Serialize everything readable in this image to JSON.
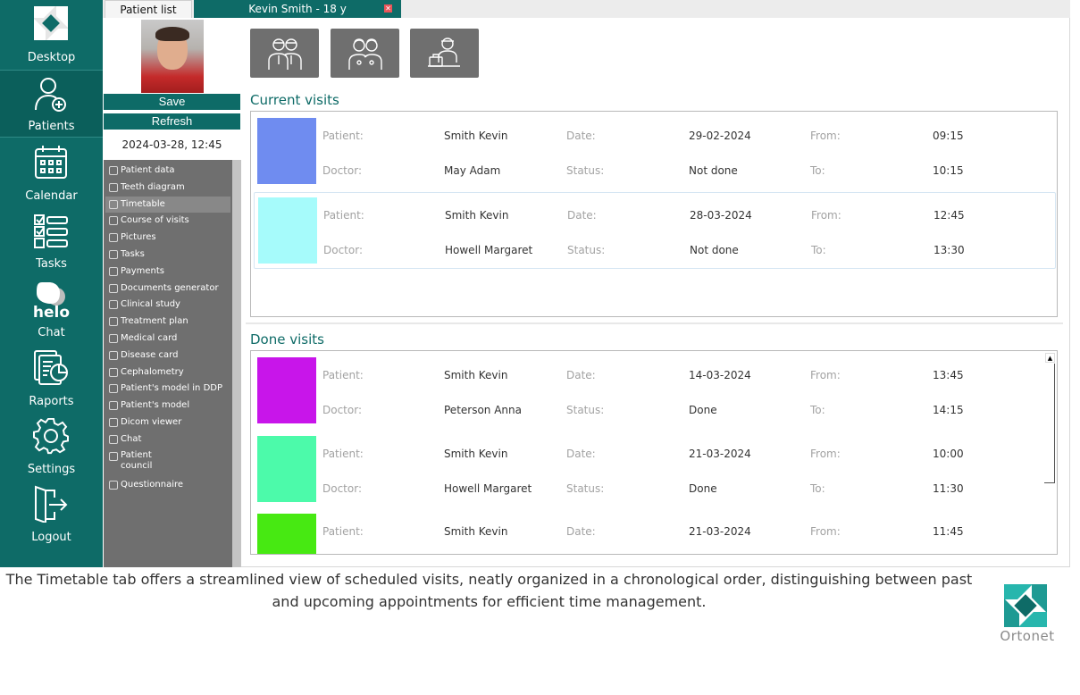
{
  "nav": {
    "items": [
      {
        "label": "Desktop",
        "icon": "desktop-logo-icon"
      },
      {
        "label": "Patients",
        "icon": "patient-add-icon"
      },
      {
        "label": "Calendar",
        "icon": "calendar-icon"
      },
      {
        "label": "Tasks",
        "icon": "checklist-icon"
      },
      {
        "label": "Chat",
        "icon": "chat-bubble-icon"
      },
      {
        "label": "Raports",
        "icon": "report-chart-icon"
      },
      {
        "label": "Settings",
        "icon": "gear-icon"
      },
      {
        "label": "Logout",
        "icon": "logout-door-icon"
      }
    ],
    "chat_brand": "helo"
  },
  "tabs": {
    "patient_list": "Patient list",
    "patient_tab": "Kevin Smith   - 18 y"
  },
  "actions": {
    "save": "Save",
    "refresh": "Refresh",
    "datetime": "2024-03-28, 12:45"
  },
  "menu": [
    {
      "label": "Patient data"
    },
    {
      "label": "Teeth diagram"
    },
    {
      "label": "Timetable",
      "active": true
    },
    {
      "label": "Course of visits"
    },
    {
      "label": "Pictures"
    },
    {
      "label": "Tasks"
    },
    {
      "label": "Payments"
    },
    {
      "label": "Documents generator"
    },
    {
      "label": "Clinical study"
    },
    {
      "label": "Treatment plan"
    },
    {
      "label": "Medical card"
    },
    {
      "label": "Disease card"
    },
    {
      "label": "Cephalometry"
    },
    {
      "label": "Patient's model in DDP"
    },
    {
      "label": "Patient's model"
    },
    {
      "label": "Dicom viewer"
    },
    {
      "label": "Chat"
    },
    {
      "label": "Patient council"
    },
    {
      "label": "Questionnaire"
    }
  ],
  "toolbar": [
    {
      "icon": "doctors-group-icon"
    },
    {
      "icon": "doctors-pair-icon"
    },
    {
      "icon": "doctor-at-desk-icon"
    }
  ],
  "labels": {
    "patient": "Patient:",
    "doctor": "Doctor:",
    "date": "Date:",
    "status": "Status:",
    "from": "From:",
    "to": "To:"
  },
  "current_visits": {
    "title": "Current visits",
    "visits": [
      {
        "patient": "Smith Kevin",
        "doctor": "May Adam",
        "date": "29-02-2024",
        "status": "Not done",
        "from": "09:15",
        "to": "10:15",
        "color": "#6f8cf0"
      },
      {
        "patient": "Smith Kevin",
        "doctor": "Howell Margaret",
        "date": "28-03-2024",
        "status": "Not done",
        "from": "12:45",
        "to": "13:30",
        "color": "#a6fbfb"
      }
    ]
  },
  "done_visits": {
    "title": "Done visits",
    "visits": [
      {
        "patient": "Smith Kevin",
        "doctor": "Peterson Anna",
        "date": "14-03-2024",
        "status": "Done",
        "from": "13:45",
        "to": "14:15",
        "color": "#c815ea"
      },
      {
        "patient": "Smith Kevin",
        "doctor": "Howell Margaret",
        "date": "21-03-2024",
        "status": "Done",
        "from": "10:00",
        "to": "11:30",
        "color": "#4cfaaa"
      },
      {
        "patient": "Smith Kevin",
        "doctor": "",
        "date": "21-03-2024",
        "status": "",
        "from": "11:45",
        "to": "",
        "color": "#47e912"
      }
    ]
  },
  "caption": {
    "line1": "The Timetable tab offers a streamlined view of scheduled visits, neatly organized in a chronological order, distinguishing between past",
    "line2": "and upcoming appointments for efficient time management."
  },
  "brand": {
    "name": "Ortonet",
    "accent": "#0e6b67",
    "logo_teal": "#27b6ad"
  }
}
